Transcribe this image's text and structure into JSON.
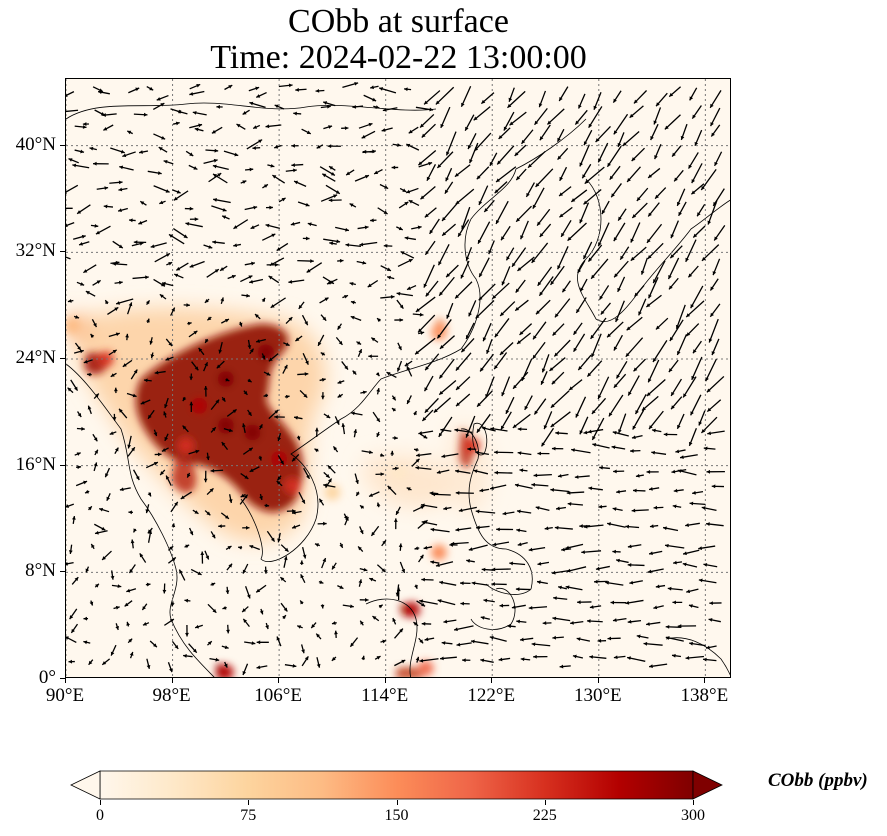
{
  "title": {
    "line1": "CObb at surface",
    "line2": "Time: 2024-02-22 13:00:00"
  },
  "map": {
    "lon_range": [
      90,
      140
    ],
    "lat_range": [
      0,
      45
    ],
    "lat_ticks": [
      {
        "value": 0,
        "label": "0°"
      },
      {
        "value": 8,
        "label": "8°N"
      },
      {
        "value": 16,
        "label": "16°N"
      },
      {
        "value": 24,
        "label": "24°N"
      },
      {
        "value": 32,
        "label": "32°N"
      },
      {
        "value": 40,
        "label": "40°N"
      }
    ],
    "lon_ticks": [
      {
        "value": 90,
        "label": "90°E"
      },
      {
        "value": 98,
        "label": "98°E"
      },
      {
        "value": 106,
        "label": "106°E"
      },
      {
        "value": 114,
        "label": "114°E"
      },
      {
        "value": 122,
        "label": "122°E"
      },
      {
        "value": 130,
        "label": "130°E"
      },
      {
        "value": 138,
        "label": "138°E"
      }
    ],
    "gridlines": "dotted",
    "overlay": "wind vectors",
    "hotspots": [
      {
        "lon": 102,
        "lat": 22.5,
        "value": 300
      },
      {
        "lon": 105,
        "lat": 24.5,
        "value": 300
      },
      {
        "lon": 100,
        "lat": 20.5,
        "value": 280
      },
      {
        "lon": 104,
        "lat": 18.5,
        "value": 300
      },
      {
        "lon": 106,
        "lat": 16.5,
        "value": 260
      },
      {
        "lon": 107,
        "lat": 14.5,
        "value": 220
      },
      {
        "lon": 93,
        "lat": 24,
        "value": 240
      },
      {
        "lon": 99,
        "lat": 17.5,
        "value": 220
      },
      {
        "lon": 102,
        "lat": 19,
        "value": 300
      },
      {
        "lon": 120.5,
        "lat": 17.5,
        "value": 220
      },
      {
        "lon": 118,
        "lat": 26,
        "value": 150
      },
      {
        "lon": 116,
        "lat": 5.2,
        "value": 250
      },
      {
        "lon": 118,
        "lat": 9.5,
        "value": 160
      },
      {
        "lon": 117,
        "lat": 0.8,
        "value": 200
      },
      {
        "lon": 102,
        "lat": 0.5,
        "value": 250
      },
      {
        "lon": 90.5,
        "lat": 26.5,
        "value": 130
      },
      {
        "lon": 110,
        "lat": 14,
        "value": 70
      },
      {
        "lon": 115,
        "lat": 15.5,
        "value": 50
      }
    ]
  },
  "colorbar": {
    "label": "CObb (ppbv)",
    "min": 0,
    "max": 300,
    "ticks": [
      "0",
      "75",
      "150",
      "225",
      "300"
    ],
    "colors": [
      "#fff7ec",
      "#fee8c8",
      "#fdd49e",
      "#fdbb84",
      "#fc8d59",
      "#ef6548",
      "#d7301f",
      "#b30000",
      "#7f0000"
    ],
    "extend": "both"
  }
}
